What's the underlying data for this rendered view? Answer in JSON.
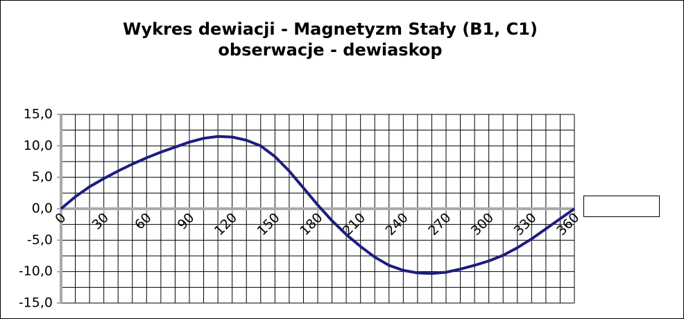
{
  "chart_data": {
    "type": "line",
    "title": "Wykres dewiacji  - Magnetyzm Stały  (B1, C1)",
    "subtitle": "obserwacje - dewiaskop",
    "x": [
      0,
      10,
      20,
      30,
      40,
      50,
      60,
      70,
      80,
      90,
      100,
      110,
      120,
      130,
      140,
      150,
      160,
      170,
      180,
      190,
      200,
      210,
      220,
      230,
      240,
      250,
      260,
      270,
      280,
      290,
      300,
      310,
      320,
      330,
      340,
      350,
      360
    ],
    "values": [
      0,
      1.9,
      3.5,
      4.8,
      6.0,
      7.1,
      8.1,
      9.0,
      9.8,
      10.6,
      11.2,
      11.5,
      11.4,
      10.9,
      10.0,
      8.3,
      6.0,
      3.3,
      0.6,
      -1.9,
      -4.1,
      -6.0,
      -7.7,
      -9.0,
      -9.8,
      -10.2,
      -10.3,
      -10.1,
      -9.6,
      -9.0,
      -8.3,
      -7.4,
      -6.2,
      -4.8,
      -3.2,
      -1.6,
      0
    ],
    "color": "#1c1c80",
    "xlim": [
      0,
      360
    ],
    "ylim": [
      -15,
      15
    ],
    "xticks": [
      0,
      30,
      60,
      90,
      120,
      150,
      180,
      210,
      240,
      270,
      300,
      330,
      360
    ],
    "yticks": [
      {
        "value": 15,
        "label": "15,0"
      },
      {
        "value": 10,
        "label": "10,0"
      },
      {
        "value": 5,
        "label": "5,0"
      },
      {
        "value": 0,
        "label": "0,0"
      },
      {
        "value": -5,
        "label": "-5,0"
      },
      {
        "value": -10,
        "label": "-10,0"
      },
      {
        "value": -15,
        "label": "-15,0"
      }
    ],
    "xgrid": [
      0,
      10,
      20,
      30,
      40,
      50,
      60,
      70,
      80,
      90,
      100,
      110,
      120,
      130,
      140,
      150,
      160,
      170,
      180,
      190,
      200,
      210,
      220,
      230,
      240,
      250,
      260,
      270,
      280,
      290,
      300,
      310,
      320,
      330,
      340,
      350,
      360
    ],
    "ygrid": [
      -15,
      -12.5,
      -10,
      -7.5,
      -5,
      -2.5,
      0,
      2.5,
      5,
      7.5,
      10,
      12.5,
      15
    ],
    "grid": true
  }
}
